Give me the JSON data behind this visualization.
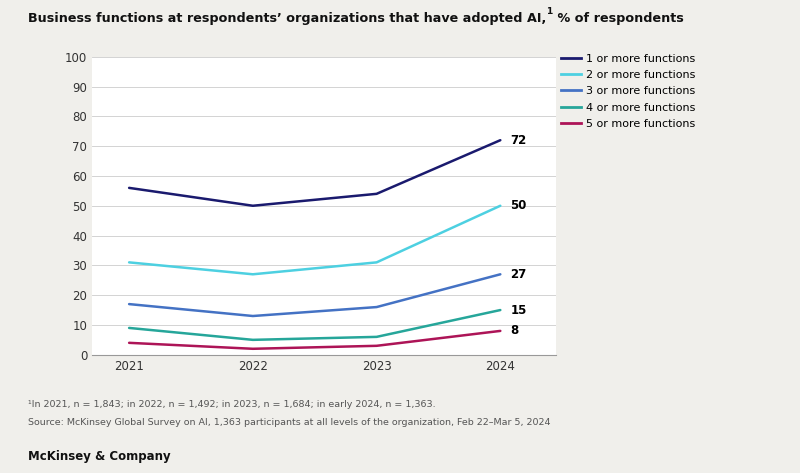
{
  "title_main": "Business functions at respondents’ organizations that have adopted AI,",
  "title_super": "1",
  "title_end": " % of respondents",
  "years": [
    2021,
    2022,
    2023,
    2024
  ],
  "series": [
    {
      "label": "1 or more functions",
      "values": [
        56,
        50,
        54,
        72
      ],
      "color": "#1a1a6e",
      "linewidth": 1.8
    },
    {
      "label": "2 or more functions",
      "values": [
        31,
        27,
        31,
        50
      ],
      "color": "#4dd0e1",
      "linewidth": 1.8
    },
    {
      "label": "3 or more functions",
      "values": [
        17,
        13,
        16,
        27
      ],
      "color": "#4472c4",
      "linewidth": 1.8
    },
    {
      "label": "4 or more functions",
      "values": [
        9,
        5,
        6,
        15
      ],
      "color": "#26a69a",
      "linewidth": 1.8
    },
    {
      "label": "5 or more functions",
      "values": [
        4,
        2,
        3,
        8
      ],
      "color": "#ad1457",
      "linewidth": 1.8
    }
  ],
  "ylim": [
    0,
    100
  ],
  "yticks": [
    0,
    10,
    20,
    30,
    40,
    50,
    60,
    70,
    80,
    90,
    100
  ],
  "footnote_line1": "¹In 2021, n = 1,843; in 2022, n = 1,492; in 2023, n = 1,684; in early 2024, n = 1,363.",
  "footnote_line2": "Source: McKinsey Global Survey on AI, 1,363 participants at all levels of the organization, Feb 22–Mar 5, 2024",
  "brand": "McKinsey & Company",
  "bg_color": "#f0efeb",
  "plot_bg_color": "#ffffff"
}
